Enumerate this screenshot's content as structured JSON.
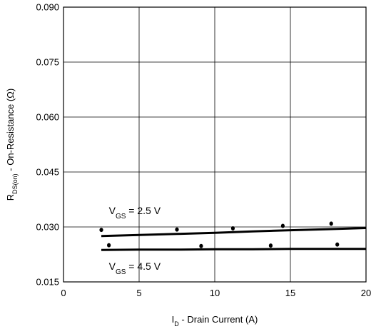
{
  "chart_data": {
    "type": "line",
    "xlabel": {
      "main": "I",
      "sub": "D",
      "rest": " - Drain Current (A)"
    },
    "ylabel": {
      "main": "R",
      "sub": "DS(on)",
      "rest": " - On-Resistance (Ω)"
    },
    "xlim": [
      0,
      20
    ],
    "ylim": [
      0.015,
      0.09
    ],
    "x_ticks": [
      0,
      5,
      10,
      15,
      20
    ],
    "x_tick_labels": [
      "0",
      "5",
      "10",
      "15",
      "20"
    ],
    "y_ticks": [
      0.015,
      0.03,
      0.045,
      0.06,
      0.075,
      0.09
    ],
    "y_tick_labels": [
      "0.015",
      "0.030",
      "0.045",
      "0.060",
      "0.075",
      "0.090"
    ],
    "grid": true,
    "series": [
      {
        "name": "VGS = 2.5 V",
        "label": {
          "main": "V",
          "sub": "GS",
          "rest": " = 2.5 V"
        },
        "x": [
          2.5,
          5,
          7.5,
          10,
          12.5,
          15,
          17.5,
          20
        ],
        "y": [
          0.0275,
          0.0278,
          0.0281,
          0.0284,
          0.0288,
          0.0291,
          0.0294,
          0.0297
        ],
        "points": [
          {
            "x": 2.5,
            "y": 0.0292
          },
          {
            "x": 7.5,
            "y": 0.0293
          },
          {
            "x": 11.2,
            "y": 0.0296
          },
          {
            "x": 14.5,
            "y": 0.0303
          },
          {
            "x": 17.7,
            "y": 0.0309
          }
        ]
      },
      {
        "name": "VGS = 4.5 V",
        "label": {
          "main": "V",
          "sub": "GS",
          "rest": " = 4.5 V"
        },
        "x": [
          2.5,
          5,
          7.5,
          10,
          12.5,
          15,
          17.5,
          20
        ],
        "y": [
          0.0237,
          0.0238,
          0.0238,
          0.0239,
          0.0239,
          0.024,
          0.024,
          0.024
        ],
        "points": [
          {
            "x": 3.0,
            "y": 0.025
          },
          {
            "x": 9.1,
            "y": 0.0248
          },
          {
            "x": 13.7,
            "y": 0.0249
          },
          {
            "x": 18.1,
            "y": 0.0252
          }
        ]
      }
    ],
    "annotations": [
      {
        "series": 0,
        "x": 3.0,
        "y": 0.0335
      },
      {
        "series": 1,
        "x": 3.0,
        "y": 0.0183
      }
    ]
  }
}
